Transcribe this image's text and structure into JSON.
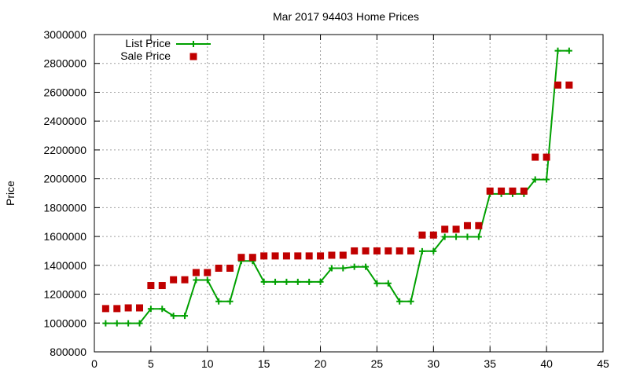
{
  "chart_data": {
    "type": "line",
    "title": "Mar 2017 94403 Home Prices",
    "xlabel": "",
    "ylabel": "Price",
    "xlim": [
      0,
      45
    ],
    "ylim": [
      800000,
      3000000
    ],
    "x_ticks": [
      0,
      5,
      10,
      15,
      20,
      25,
      30,
      35,
      40,
      45
    ],
    "y_ticks": [
      800000,
      1000000,
      1200000,
      1400000,
      1600000,
      1800000,
      2000000,
      2200000,
      2400000,
      2600000,
      2800000,
      3000000
    ],
    "grid": true,
    "legend_position": "top-left",
    "series": [
      {
        "name": "List Price",
        "style": "line-with-plus-markers",
        "color": "#00a000",
        "x": [
          1,
          2,
          3,
          4,
          5,
          6,
          7,
          8,
          9,
          10,
          11,
          12,
          13,
          14,
          15,
          16,
          17,
          18,
          19,
          20,
          21,
          22,
          23,
          24,
          25,
          26,
          27,
          28,
          29,
          30,
          31,
          32,
          33,
          34,
          35,
          36,
          37,
          38,
          39,
          40,
          41,
          42
        ],
        "values": [
          998000,
          998000,
          998000,
          998000,
          1098000,
          1098000,
          1050000,
          1050000,
          1298000,
          1298000,
          1150000,
          1150000,
          1430000,
          1430000,
          1285000,
          1285000,
          1285000,
          1285000,
          1285000,
          1285000,
          1380000,
          1380000,
          1390000,
          1390000,
          1275000,
          1275000,
          1150000,
          1150000,
          1498000,
          1498000,
          1598000,
          1598000,
          1598000,
          1598000,
          1895000,
          1895000,
          1895000,
          1895000,
          1995000,
          1995000,
          2888000,
          2888000
        ]
      },
      {
        "name": "Sale Price",
        "style": "square-markers",
        "color": "#c00000",
        "x": [
          1,
          2,
          3,
          4,
          5,
          6,
          7,
          8,
          9,
          10,
          11,
          12,
          13,
          14,
          15,
          16,
          17,
          18,
          19,
          20,
          21,
          22,
          23,
          24,
          25,
          26,
          27,
          28,
          29,
          30,
          31,
          32,
          33,
          34,
          35,
          36,
          37,
          38,
          39,
          40,
          41,
          42
        ],
        "values": [
          1100000,
          1100000,
          1105000,
          1105000,
          1260000,
          1260000,
          1300000,
          1300000,
          1350000,
          1350000,
          1380000,
          1380000,
          1455000,
          1455000,
          1465000,
          1465000,
          1465000,
          1465000,
          1465000,
          1465000,
          1470000,
          1470000,
          1500000,
          1500000,
          1500000,
          1500000,
          1500000,
          1500000,
          1610000,
          1610000,
          1650000,
          1650000,
          1675000,
          1675000,
          1915000,
          1915000,
          1915000,
          1915000,
          2150000,
          2150000,
          2650000,
          2650000
        ]
      }
    ]
  }
}
